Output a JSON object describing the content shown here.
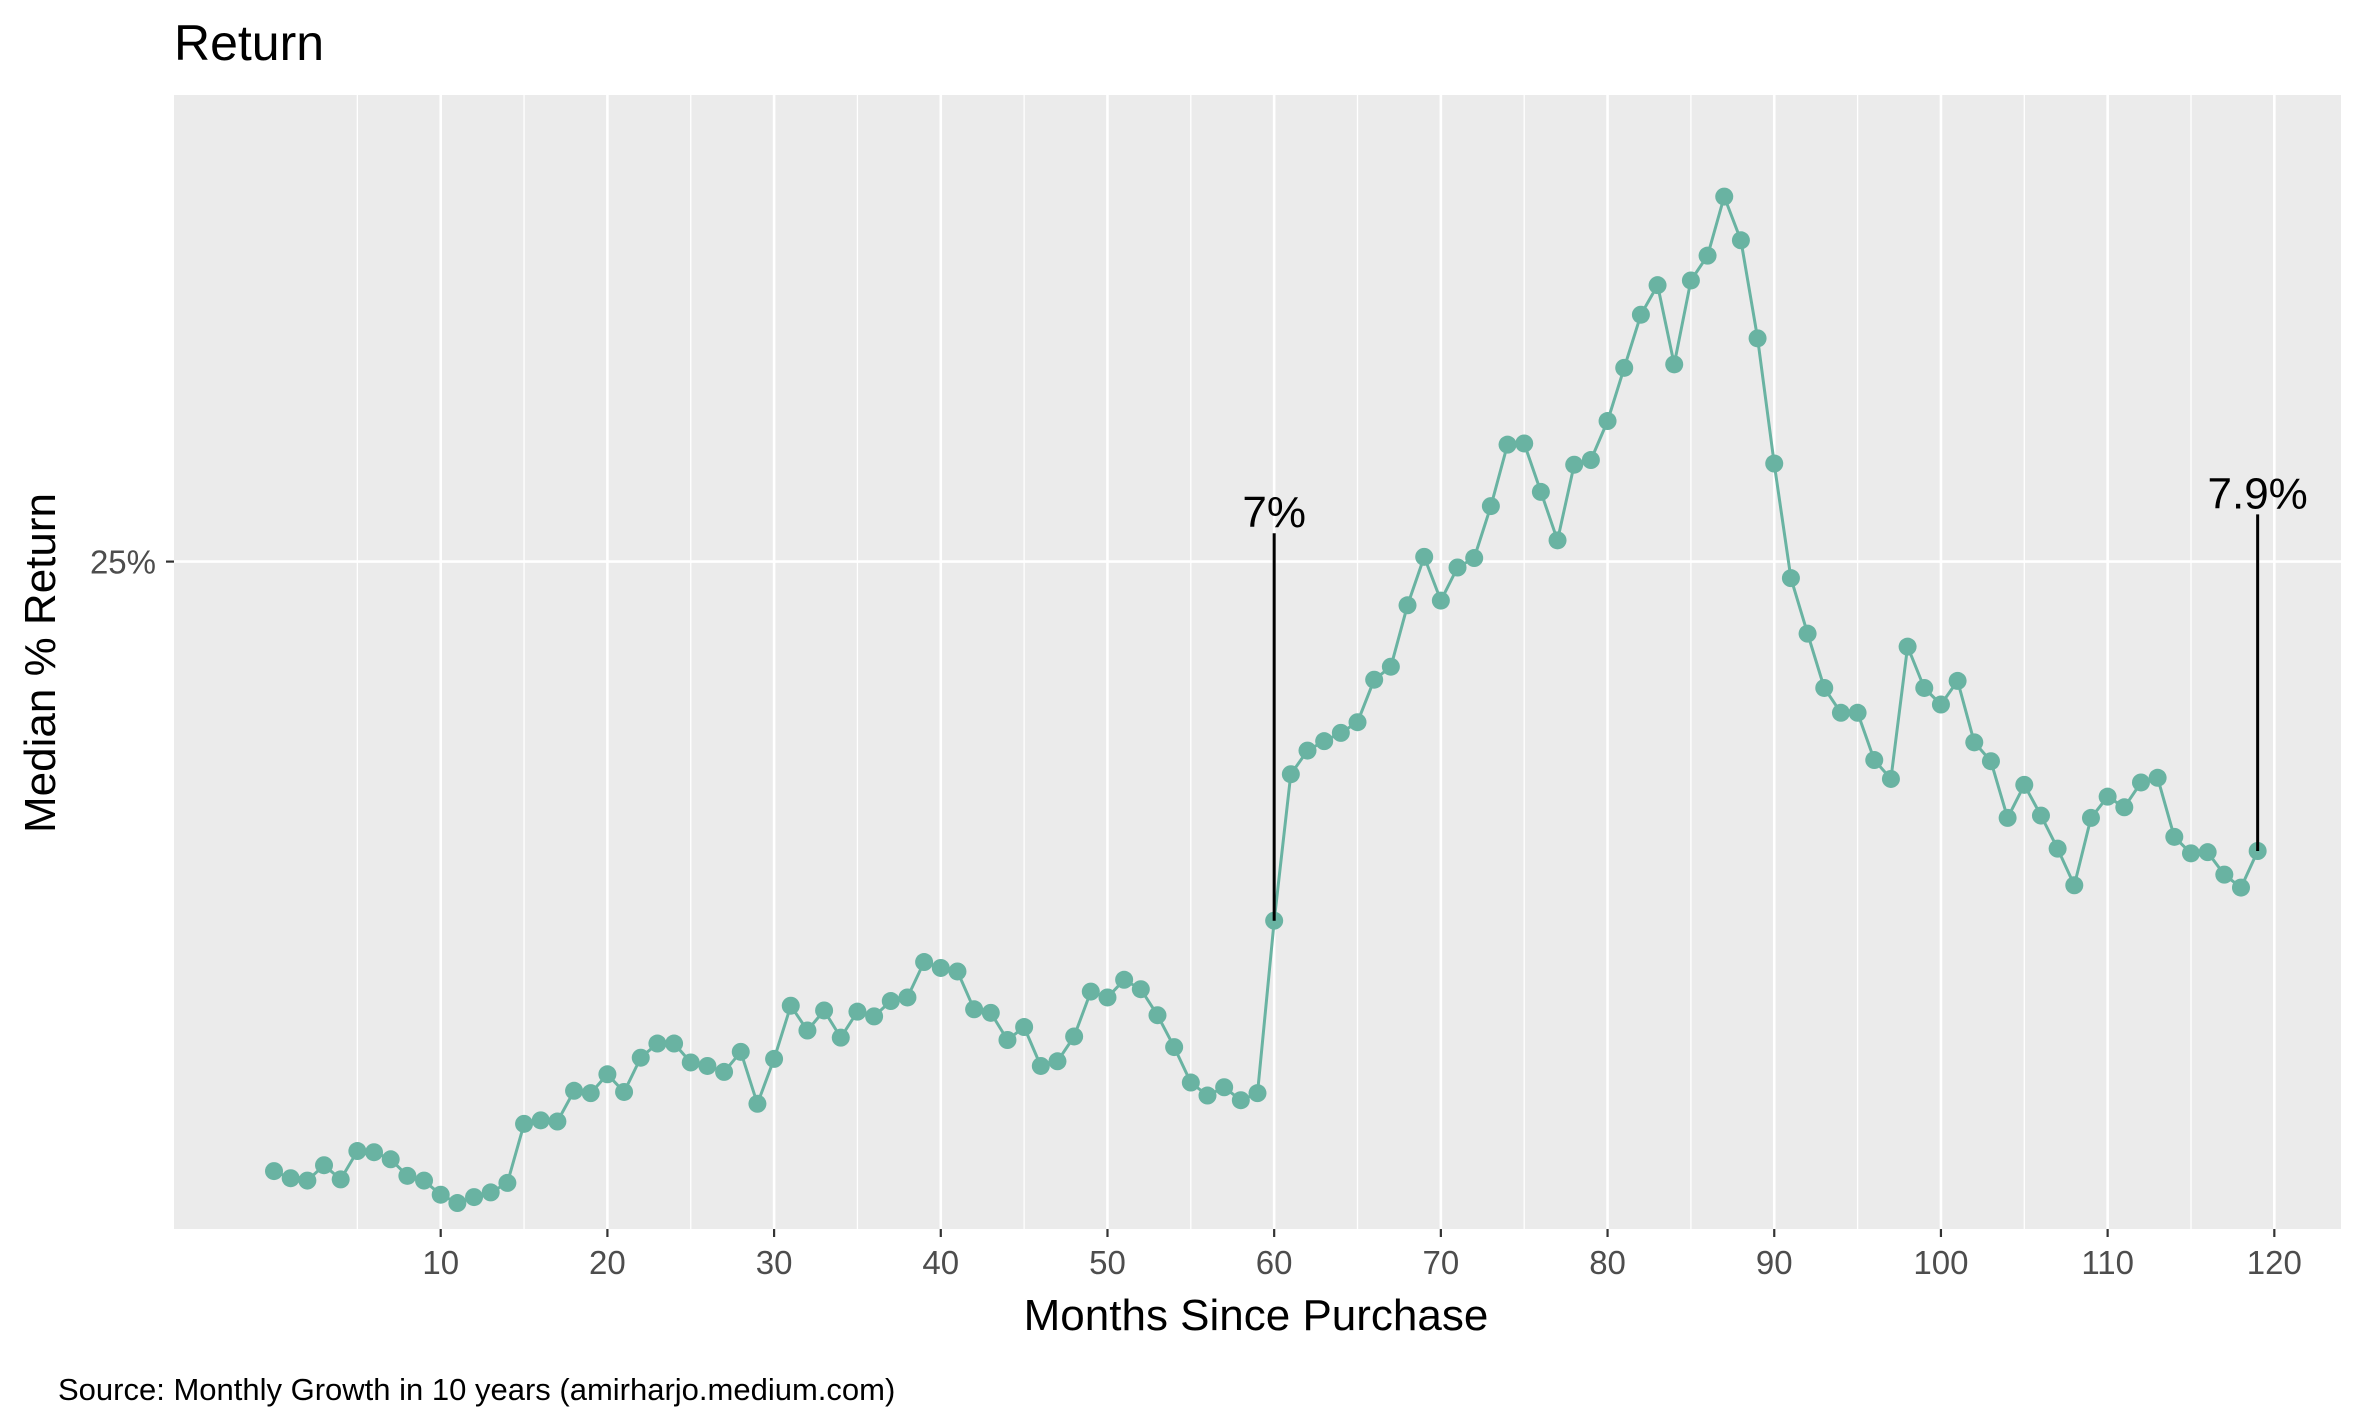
{
  "chart_data": {
    "type": "line",
    "title": "Return",
    "xlabel": "Months Since Purchase",
    "ylabel": "Median % Return",
    "caption": "Source: Monthly Growth in 10 years (amirharjo.medium.com)",
    "xlim": [
      -6,
      124
    ],
    "ylim": [
      -31.5,
      64.5
    ],
    "x_ticks": [
      10,
      20,
      30,
      40,
      50,
      60,
      70,
      80,
      90,
      100,
      110,
      120
    ],
    "x_tick_labels": [
      "10",
      "20",
      "30",
      "40",
      "50",
      "60",
      "70",
      "80",
      "90",
      "100",
      "110",
      "120"
    ],
    "x_minor_gridlines": [
      5,
      15,
      25,
      35,
      45,
      55,
      65,
      75,
      85,
      95,
      105,
      115
    ],
    "y_ticks": [
      25
    ],
    "y_tick_labels": [
      "25%"
    ],
    "grid": true,
    "line_color": "#69b3a2",
    "series": [
      {
        "name": "Median % Return",
        "x": [
          0,
          1,
          2,
          3,
          4,
          5,
          6,
          7,
          8,
          9,
          10,
          11,
          12,
          13,
          14,
          15,
          16,
          17,
          18,
          19,
          20,
          21,
          22,
          23,
          24,
          25,
          26,
          27,
          28,
          29,
          30,
          31,
          32,
          33,
          34,
          35,
          36,
          37,
          38,
          39,
          40,
          41,
          42,
          43,
          44,
          45,
          46,
          47,
          48,
          49,
          50,
          51,
          52,
          53,
          54,
          55,
          56,
          57,
          58,
          59,
          60,
          61,
          62,
          63,
          64,
          65,
          66,
          67,
          68,
          69,
          70,
          71,
          72,
          73,
          74,
          75,
          76,
          77,
          78,
          79,
          80,
          81,
          82,
          83,
          84,
          85,
          86,
          87,
          88,
          89,
          90,
          91,
          92,
          93,
          94,
          95,
          96,
          97,
          98,
          99,
          100,
          101,
          102,
          103,
          104,
          105,
          106,
          107,
          108,
          109,
          110,
          111,
          112,
          113,
          114,
          115,
          116,
          117,
          118,
          119
        ],
        "y": [
          -26.6,
          -27.2,
          -27.4,
          -26.1,
          -27.3,
          -24.9,
          -25.0,
          -25.6,
          -27.0,
          -27.4,
          -28.6,
          -29.3,
          -28.8,
          -28.4,
          -27.6,
          -22.6,
          -22.3,
          -22.4,
          -19.8,
          -20.0,
          -18.4,
          -19.9,
          -17.0,
          -15.8,
          -15.8,
          -17.4,
          -17.7,
          -18.2,
          -16.5,
          -20.9,
          -17.1,
          -12.6,
          -14.7,
          -13.0,
          -15.3,
          -13.1,
          -13.5,
          -12.2,
          -11.9,
          -8.9,
          -9.4,
          -9.7,
          -12.9,
          -13.2,
          -15.5,
          -14.4,
          -17.7,
          -17.3,
          -15.2,
          -11.4,
          -11.9,
          -10.4,
          -11.2,
          -13.4,
          -16.1,
          -19.1,
          -20.2,
          -19.5,
          -20.6,
          -20.0,
          -5.4,
          7.0,
          9.0,
          9.8,
          10.5,
          11.4,
          15.0,
          16.1,
          21.3,
          25.4,
          21.7,
          24.5,
          25.3,
          29.7,
          34.9,
          35.0,
          30.9,
          26.8,
          33.2,
          33.6,
          36.9,
          41.4,
          45.9,
          48.4,
          41.7,
          48.8,
          50.9,
          55.9,
          52.2,
          43.9,
          33.3,
          23.6,
          18.9,
          14.3,
          12.2,
          12.2,
          8.2,
          6.6,
          17.8,
          14.3,
          12.9,
          14.9,
          9.7,
          8.1,
          3.3,
          6.1,
          3.5,
          0.7,
          -2.4,
          3.3,
          5.1,
          4.2,
          6.3,
          6.7,
          1.7,
          0.3,
          0.4,
          -1.5,
          -2.6,
          0.5
        ]
      }
    ],
    "annotations": [
      {
        "x": 60,
        "y_from": -5.4,
        "y_to": 27.4,
        "text": "7%"
      },
      {
        "x": 119,
        "y_from": 0.5,
        "y_to": 29.0,
        "text": "7.9%"
      }
    ]
  }
}
